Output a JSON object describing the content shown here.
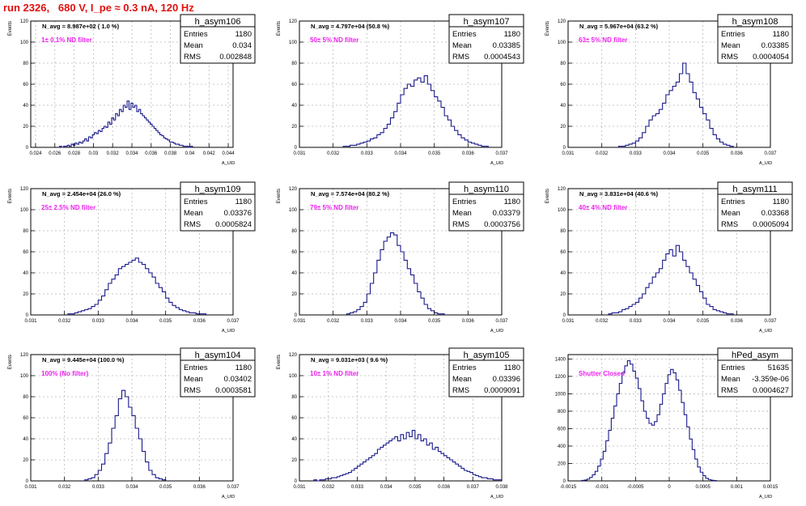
{
  "header": {
    "run_title": "run 2326,   680 V, I_pe ≈ 0.3 nA, 120 Hz"
  },
  "chart_data": [
    {
      "type": "bar",
      "histogram": "h_asym106",
      "xlabel": "A_UID",
      "ylabel": "Events",
      "xlim": [
        0.0235,
        0.0445
      ],
      "ylim": [
        0,
        120
      ],
      "xticks": [
        0.024,
        0.026,
        0.028,
        0.03,
        0.032,
        0.034,
        0.036,
        0.038,
        0.04,
        0.042,
        0.044
      ],
      "xtick_labels": [
        "0.024",
        "0.026",
        "0.028",
        "0.03",
        "0.032",
        "0.034",
        "0.036",
        "0.038",
        "0.04",
        "0.042",
        "0.044"
      ],
      "yticks": [
        0,
        20,
        40,
        60,
        80,
        100,
        120
      ],
      "ytick_labels": [
        "0",
        "20",
        "40",
        "60",
        "80",
        "100",
        "120"
      ],
      "grid": true,
      "annotation_navg": "N_avg = 8.987e+02 ( 1.0 %)",
      "annotation_filter": "1± 0.1% ND filter",
      "stats": {
        "entries": "1180",
        "mean": "0.034",
        "rms": "0.002848"
      },
      "bin_start": 0.0265,
      "bin_width": 0.0002,
      "counts": [
        1,
        0,
        1,
        1,
        2,
        1,
        3,
        2,
        4,
        3,
        5,
        4,
        6,
        8,
        6,
        10,
        9,
        12,
        14,
        13,
        16,
        15,
        18,
        20,
        19,
        24,
        22,
        28,
        26,
        32,
        30,
        36,
        34,
        40,
        38,
        44,
        36,
        42,
        38,
        40,
        34,
        36,
        32,
        30,
        28,
        26,
        24,
        22,
        20,
        18,
        16,
        14,
        12,
        11,
        9,
        8,
        7,
        5,
        5,
        4,
        3,
        3,
        2,
        2,
        1,
        1,
        1,
        0,
        1
      ]
    },
    {
      "type": "bar",
      "histogram": "h_asym107",
      "xlabel": "A_UID",
      "ylabel": "Events",
      "xlim": [
        0.031,
        0.037
      ],
      "ylim": [
        0,
        120
      ],
      "xticks": [
        0.031,
        0.032,
        0.033,
        0.034,
        0.035,
        0.036,
        0.037
      ],
      "xtick_labels": [
        "0.031",
        "0.032",
        "0.033",
        "0.034",
        "0.035",
        "0.036",
        "0.037"
      ],
      "yticks": [
        0,
        20,
        40,
        60,
        80,
        100,
        120
      ],
      "ytick_labels": [
        "0",
        "20",
        "40",
        "60",
        "80",
        "100",
        "120"
      ],
      "grid": true,
      "annotation_navg": "N_avg = 4.797e+04 (50.8 %)",
      "annotation_filter": "50± 5% ND filter",
      "stats": {
        "entries": "1180",
        "mean": "0.03385",
        "rms": "0.0004543"
      },
      "bin_start": 0.0323,
      "bin_width": 0.0001,
      "counts": [
        1,
        1,
        2,
        2,
        3,
        4,
        5,
        6,
        8,
        9,
        12,
        14,
        18,
        22,
        28,
        34,
        42,
        50,
        56,
        60,
        58,
        64,
        66,
        62,
        68,
        60,
        54,
        48,
        44,
        38,
        30,
        26,
        20,
        16,
        12,
        9,
        7,
        5,
        4,
        3,
        2,
        1,
        1
      ]
    },
    {
      "type": "bar",
      "histogram": "h_asym108",
      "xlabel": "A_UID",
      "ylabel": "Events",
      "xlim": [
        0.031,
        0.037
      ],
      "ylim": [
        0,
        120
      ],
      "xticks": [
        0.031,
        0.032,
        0.033,
        0.034,
        0.035,
        0.036,
        0.037
      ],
      "xtick_labels": [
        "0.031",
        "0.032",
        "0.033",
        "0.034",
        "0.035",
        "0.036",
        "0.037"
      ],
      "yticks": [
        0,
        20,
        40,
        60,
        80,
        100,
        120
      ],
      "ytick_labels": [
        "0",
        "20",
        "40",
        "60",
        "80",
        "100",
        "120"
      ],
      "grid": true,
      "annotation_navg": "N_avg = 5.967e+04 (63.2 %)",
      "annotation_filter": "63± 5% ND filter",
      "stats": {
        "entries": "1180",
        "mean": "0.03385",
        "rms": "0.0004054"
      },
      "bin_start": 0.0325,
      "bin_width": 0.0001,
      "counts": [
        1,
        1,
        2,
        3,
        4,
        6,
        9,
        14,
        20,
        26,
        30,
        32,
        36,
        42,
        50,
        54,
        58,
        62,
        70,
        80,
        70,
        62,
        52,
        46,
        38,
        32,
        26,
        18,
        12,
        8,
        5,
        3,
        2,
        1
      ]
    },
    {
      "type": "bar",
      "histogram": "h_asym109",
      "xlabel": "A_UID",
      "ylabel": "Events",
      "xlim": [
        0.031,
        0.037
      ],
      "ylim": [
        0,
        120
      ],
      "xticks": [
        0.031,
        0.032,
        0.033,
        0.034,
        0.035,
        0.036,
        0.037
      ],
      "xtick_labels": [
        "0.031",
        "0.032",
        "0.033",
        "0.034",
        "0.035",
        "0.036",
        "0.037"
      ],
      "yticks": [
        0,
        20,
        40,
        60,
        80,
        100,
        120
      ],
      "ytick_labels": [
        "0",
        "20",
        "40",
        "60",
        "80",
        "100",
        "120"
      ],
      "grid": true,
      "annotation_navg": "N_avg = 2.454e+04 (26.0 %)",
      "annotation_filter": "25± 2.5% ND filter",
      "stats": {
        "entries": "1180",
        "mean": "0.03376",
        "rms": "0.0005824"
      },
      "bin_start": 0.0321,
      "bin_width": 0.0001,
      "counts": [
        1,
        1,
        2,
        3,
        4,
        5,
        6,
        8,
        10,
        14,
        18,
        24,
        30,
        34,
        38,
        44,
        46,
        48,
        50,
        52,
        54,
        50,
        48,
        44,
        40,
        36,
        30,
        26,
        22,
        16,
        12,
        9,
        7,
        5,
        4,
        3,
        2,
        2,
        1,
        1,
        1
      ]
    },
    {
      "type": "bar",
      "histogram": "h_asym110",
      "xlabel": "A_UID",
      "ylabel": "Events",
      "xlim": [
        0.031,
        0.037
      ],
      "ylim": [
        0,
        120
      ],
      "xticks": [
        0.031,
        0.032,
        0.033,
        0.034,
        0.035,
        0.036,
        0.037
      ],
      "xtick_labels": [
        "0.031",
        "0.032",
        "0.033",
        "0.034",
        "0.035",
        "0.036",
        "0.037"
      ],
      "yticks": [
        0,
        20,
        40,
        60,
        80,
        100,
        120
      ],
      "ytick_labels": [
        "0",
        "20",
        "40",
        "60",
        "80",
        "100",
        "120"
      ],
      "grid": true,
      "annotation_navg": "N_avg = 7.574e+04 (80.2 %)",
      "annotation_filter": "79± 5% ND filter",
      "stats": {
        "entries": "1180",
        "mean": "0.03379",
        "rms": "0.0003756"
      },
      "bin_start": 0.0324,
      "bin_width": 0.0001,
      "counts": [
        1,
        2,
        3,
        5,
        8,
        12,
        20,
        30,
        40,
        52,
        62,
        70,
        74,
        78,
        76,
        66,
        60,
        52,
        44,
        38,
        30,
        22,
        16,
        10,
        6,
        4,
        2,
        1,
        1
      ]
    },
    {
      "type": "bar",
      "histogram": "h_asym111",
      "xlabel": "A_UID",
      "ylabel": "Events",
      "xlim": [
        0.031,
        0.037
      ],
      "ylim": [
        0,
        120
      ],
      "xticks": [
        0.031,
        0.032,
        0.033,
        0.034,
        0.035,
        0.036,
        0.037
      ],
      "xtick_labels": [
        "0.031",
        "0.032",
        "0.033",
        "0.034",
        "0.035",
        "0.036",
        "0.037"
      ],
      "yticks": [
        0,
        20,
        40,
        60,
        80,
        100,
        120
      ],
      "ytick_labels": [
        "0",
        "20",
        "40",
        "60",
        "80",
        "100",
        "120"
      ],
      "grid": true,
      "annotation_navg": "N_avg = 3.831e+04 (40.6 %)",
      "annotation_filter": "40± 4% ND filter",
      "stats": {
        "entries": "1180",
        "mean": "0.03368",
        "rms": "0.0005094"
      },
      "bin_start": 0.0322,
      "bin_width": 0.0001,
      "counts": [
        1,
        2,
        2,
        3,
        5,
        6,
        8,
        10,
        12,
        16,
        20,
        26,
        30,
        36,
        40,
        44,
        52,
        58,
        62,
        56,
        66,
        60,
        52,
        46,
        40,
        34,
        28,
        22,
        16,
        10,
        8,
        5,
        4,
        3,
        2,
        1,
        1
      ]
    },
    {
      "type": "bar",
      "histogram": "h_asym104",
      "xlabel": "A_UID",
      "ylabel": "Events",
      "xlim": [
        0.031,
        0.037
      ],
      "ylim": [
        0,
        120
      ],
      "xticks": [
        0.031,
        0.032,
        0.033,
        0.034,
        0.035,
        0.036,
        0.037
      ],
      "xtick_labels": [
        "0.031",
        "0.032",
        "0.033",
        "0.034",
        "0.035",
        "0.036",
        "0.037"
      ],
      "yticks": [
        0,
        20,
        40,
        60,
        80,
        100,
        120
      ],
      "ytick_labels": [
        "0",
        "20",
        "40",
        "60",
        "80",
        "100",
        "120"
      ],
      "grid": true,
      "annotation_navg": "N_avg = 9.445e+04 (100.0 %)",
      "annotation_filter": "100% (No filter)",
      "stats": {
        "entries": "1180",
        "mean": "0.03402",
        "rms": "0.0003581"
      },
      "bin_start": 0.0326,
      "bin_width": 0.0001,
      "counts": [
        1,
        2,
        3,
        6,
        10,
        16,
        26,
        36,
        50,
        62,
        78,
        86,
        80,
        70,
        62,
        50,
        40,
        28,
        18,
        10,
        6,
        3,
        2,
        1
      ]
    },
    {
      "type": "bar",
      "histogram": "h_asym105",
      "xlabel": "A_UID",
      "ylabel": "Events",
      "xlim": [
        0.031,
        0.038
      ],
      "ylim": [
        0,
        120
      ],
      "xticks": [
        0.031,
        0.032,
        0.033,
        0.034,
        0.035,
        0.036,
        0.037,
        0.038
      ],
      "xtick_labels": [
        "0.031",
        "0.032",
        "0.033",
        "0.034",
        "0.035",
        "0.036",
        "0.037",
        "0.038"
      ],
      "yticks": [
        0,
        20,
        40,
        60,
        80,
        100,
        120
      ],
      "ytick_labels": [
        "0",
        "20",
        "40",
        "60",
        "80",
        "100",
        "120"
      ],
      "grid": true,
      "annotation_navg": "N_avg = 9.031e+03 ( 9.6 %)",
      "annotation_filter": "10± 1% ND filter",
      "stats": {
        "entries": "1180",
        "mean": "0.03396",
        "rms": "0.0009091"
      },
      "bin_start": 0.0315,
      "bin_width": 0.0001,
      "counts": [
        1,
        0,
        1,
        1,
        2,
        2,
        3,
        3,
        4,
        5,
        6,
        7,
        8,
        10,
        12,
        14,
        16,
        18,
        20,
        22,
        24,
        26,
        30,
        32,
        34,
        36,
        38,
        40,
        42,
        38,
        44,
        40,
        46,
        42,
        48,
        40,
        44,
        38,
        40,
        34,
        36,
        30,
        32,
        28,
        26,
        24,
        22,
        20,
        18,
        16,
        14,
        12,
        10,
        9,
        8,
        6,
        5,
        4,
        3,
        3,
        2,
        2,
        1,
        1,
        1
      ]
    },
    {
      "type": "bar",
      "histogram": "hPed_asym",
      "xlabel": "A_UID",
      "ylabel": "",
      "xlim": [
        -0.0015,
        0.0015
      ],
      "ylim": [
        0,
        1450
      ],
      "xticks": [
        -0.0015,
        -0.001,
        -0.0005,
        0,
        0.0005,
        0.001,
        0.0015
      ],
      "xtick_labels": [
        "-0.0015",
        "-0.001",
        "-0.0005",
        "0",
        "0.0005",
        "0.001",
        "0.0015"
      ],
      "yticks": [
        0,
        200,
        400,
        600,
        800,
        1000,
        1200,
        1400
      ],
      "ytick_labels": [
        "0",
        "200",
        "400",
        "600",
        "800",
        "1000",
        "1200",
        "1400"
      ],
      "grid": true,
      "annotation_navg": "",
      "annotation_filter": "Shutter Closed",
      "stats": {
        "entries": "51635",
        "mean": "-3.359e-06",
        "rms": "0.0004627"
      },
      "bin_start": -0.0013,
      "bin_width": 4e-05,
      "counts": [
        5,
        10,
        20,
        40,
        70,
        110,
        170,
        250,
        340,
        460,
        580,
        720,
        860,
        1000,
        1120,
        1240,
        1320,
        1380,
        1340,
        1260,
        1180,
        1060,
        920,
        800,
        720,
        660,
        640,
        680,
        760,
        880,
        1000,
        1120,
        1220,
        1280,
        1240,
        1160,
        1040,
        900,
        760,
        620,
        480,
        360,
        250,
        160,
        100,
        60,
        30,
        15,
        8,
        4
      ]
    }
  ]
}
